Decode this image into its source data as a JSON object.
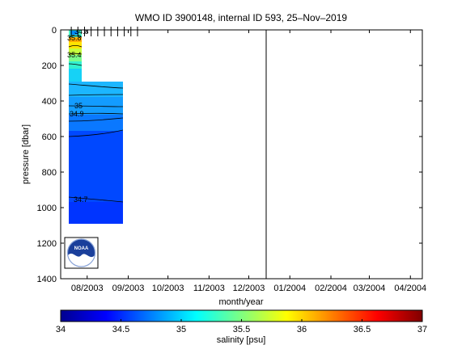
{
  "chart_data": {
    "type": "heatmap",
    "title": "WMO ID 3900148, internal ID 593, 25–Nov–2019",
    "xlabel": "month/year",
    "ylabel": "pressure [dbar]",
    "x_ticks": [
      "08/2003",
      "09/2003",
      "10/2003",
      "11/2003",
      "12/2003",
      "01/2004",
      "02/2004",
      "03/2004",
      "04/2004"
    ],
    "y_ticks": [
      "0",
      "200",
      "400",
      "600",
      "800",
      "1000",
      "1200",
      "1400"
    ],
    "ylim": [
      0,
      1400
    ],
    "y_reversed": true,
    "year_boundary": "01/2004",
    "profile_dates": [
      "2003-07-20",
      "2003-07-25",
      "2003-07-30",
      "2003-08-04",
      "2003-08-09",
      "2003-08-14",
      "2003-08-19",
      "2003-08-24",
      "2003-08-29",
      "2003-09-03",
      "2003-09-08"
    ],
    "contour_labels": [
      "34.8",
      "35.8",
      "35.4",
      "35",
      "34.9",
      "34.7"
    ],
    "colorbar": {
      "label": "salinity [psu]",
      "range": [
        34,
        37
      ],
      "ticks": [
        "34",
        "34.5",
        "35",
        "35.5",
        "36",
        "36.5",
        "37"
      ],
      "colormap": "jet"
    },
    "field": {
      "description_levels_dbar": [
        0,
        20,
        40,
        60,
        80,
        100,
        130,
        160,
        200,
        250,
        300,
        350,
        400,
        450,
        500,
        550,
        600,
        700,
        800,
        900,
        1000,
        1090
      ],
      "salinity_first_profile": [
        34.9,
        35.9,
        36.1,
        35.9,
        35.7,
        35.6,
        35.4,
        35.2,
        35.1,
        35.05,
        35.0,
        34.97,
        34.95,
        34.93,
        34.9,
        34.87,
        34.84,
        34.8,
        34.77,
        34.74,
        34.71,
        34.7
      ]
    }
  },
  "logo": {
    "icon": "noaa-logo"
  }
}
